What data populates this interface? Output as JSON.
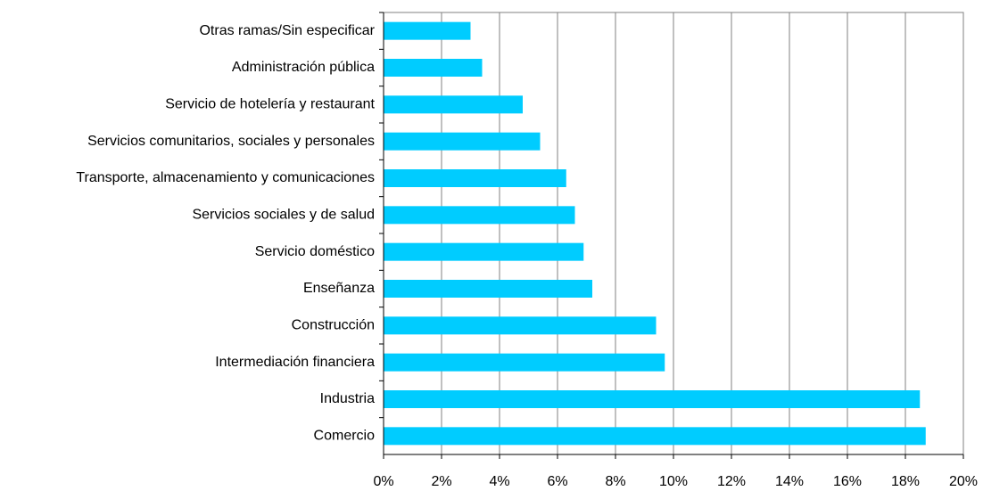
{
  "chart_data": {
    "type": "bar",
    "orientation": "horizontal",
    "categories": [
      "Otras ramas/Sin especificar",
      "Administración pública",
      "Servicio de hotelería y restaurant",
      "Servicios comunitarios, sociales y personales",
      "Transporte, almacenamiento y comunicaciones",
      "Servicios sociales y de salud",
      "Servicio doméstico",
      "Enseñanza",
      "Construcción",
      "Intermediación financiera",
      "Industria",
      "Comercio"
    ],
    "values": [
      3.0,
      3.4,
      4.8,
      5.4,
      6.3,
      6.6,
      6.9,
      7.2,
      9.4,
      9.7,
      18.5,
      18.7
    ],
    "color": "#00ccff",
    "xlim": [
      0,
      20
    ],
    "xticks": [
      {
        "value": 0,
        "label": "0%"
      },
      {
        "value": 2,
        "label": "2%"
      },
      {
        "value": 4,
        "label": "4%"
      },
      {
        "value": 6,
        "label": "6%"
      },
      {
        "value": 8,
        "label": "8%"
      },
      {
        "value": 10,
        "label": "10%"
      },
      {
        "value": 12,
        "label": "12%"
      },
      {
        "value": 14,
        "label": "14%"
      },
      {
        "value": 16,
        "label": "16%"
      },
      {
        "value": 18,
        "label": "18%"
      },
      {
        "value": 20,
        "label": "20%"
      }
    ],
    "grid": true
  }
}
